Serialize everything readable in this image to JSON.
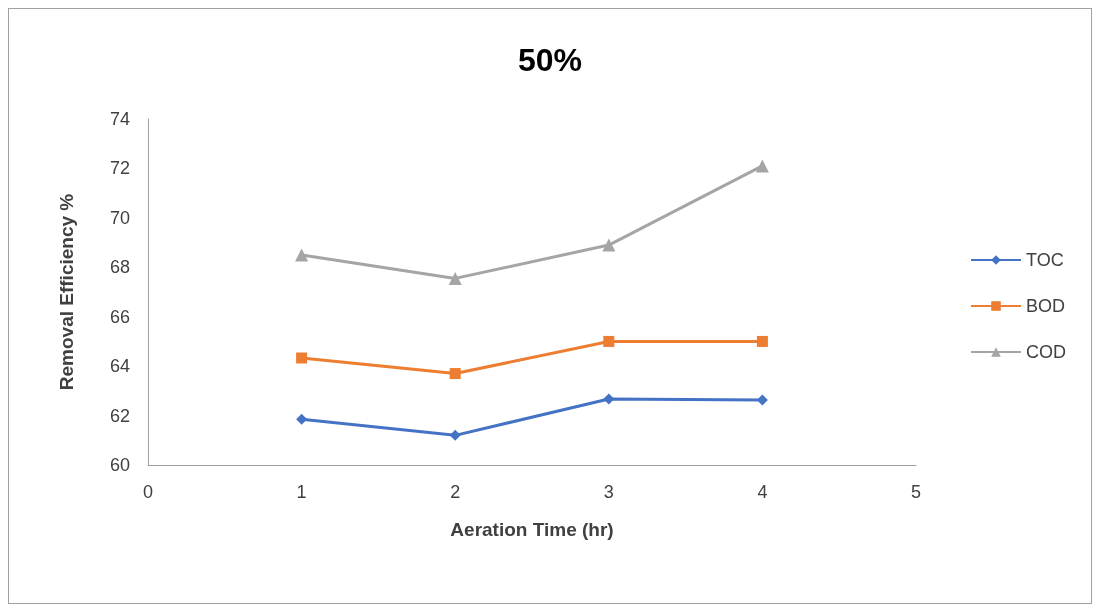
{
  "chart_data": {
    "type": "line",
    "title": "50%",
    "xlabel": "Aeration Time (hr)",
    "ylabel": "Removal Efficiency %",
    "x": [
      1,
      2,
      3,
      4
    ],
    "series": [
      {
        "name": "TOC",
        "color": "#4472c4",
        "marker": "diamond",
        "values": [
          61.85,
          61.2,
          62.67,
          62.63
        ]
      },
      {
        "name": "BOD",
        "color": "#ed7d31",
        "marker": "square",
        "values": [
          64.33,
          63.7,
          65.0,
          65.0
        ]
      },
      {
        "name": "COD",
        "color": "#a5a5a5",
        "marker": "triangle",
        "values": [
          68.5,
          67.55,
          68.9,
          72.1
        ]
      }
    ],
    "xlim": [
      0,
      5
    ],
    "xticks": [
      0,
      1,
      2,
      3,
      4,
      5
    ],
    "ylim": [
      60,
      74
    ],
    "yticks": [
      60,
      62,
      64,
      66,
      68,
      70,
      72,
      74
    ],
    "grid": false,
    "legend": "right",
    "line_style": "solid"
  }
}
